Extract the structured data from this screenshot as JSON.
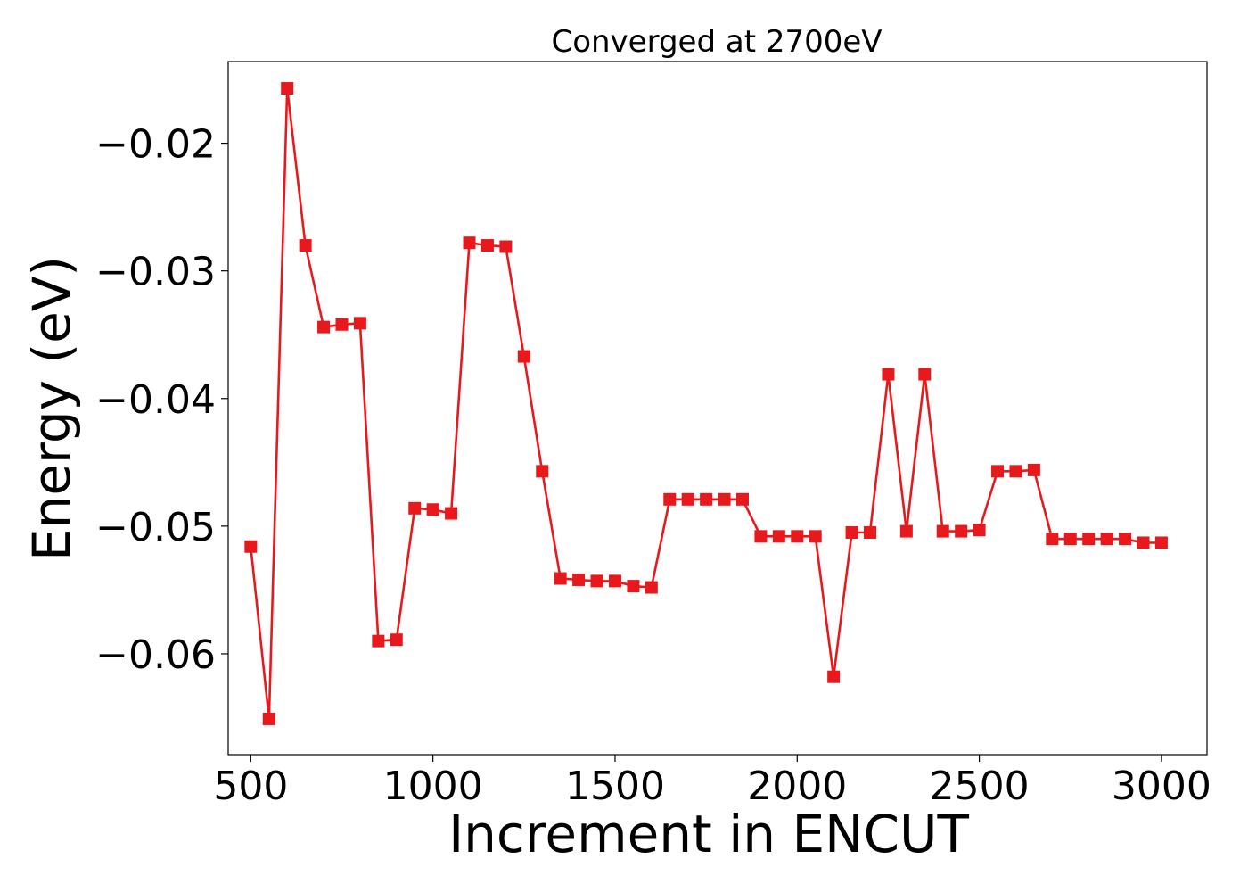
{
  "chart_data": {
    "type": "line",
    "title": "Converged at 2700eV",
    "xlabel": "Increment in ENCUT",
    "ylabel": "Energy (eV)",
    "xlim": [
      438,
      3125
    ],
    "ylim": [
      -0.0679,
      -0.0136
    ],
    "xticks": [
      500,
      1000,
      1500,
      2000,
      2500,
      3000
    ],
    "xtick_labels": [
      "500",
      "1000",
      "1500",
      "2000",
      "2500",
      "3000"
    ],
    "yticks": [
      -0.06,
      -0.05,
      -0.04,
      -0.03,
      -0.02
    ],
    "ytick_labels": [
      "−0.06",
      "−0.05",
      "−0.04",
      "−0.03",
      "−0.02"
    ],
    "grid": false,
    "legend": "none",
    "series": [
      {
        "color": "#e8191c",
        "marker": "square",
        "x": [
          500,
          550,
          600,
          650,
          700,
          750,
          800,
          850,
          900,
          950,
          1000,
          1050,
          1100,
          1150,
          1200,
          1250,
          1300,
          1350,
          1400,
          1450,
          1500,
          1550,
          1600,
          1650,
          1700,
          1750,
          1800,
          1850,
          1900,
          1950,
          2000,
          2050,
          2100,
          2150,
          2200,
          2250,
          2300,
          2350,
          2400,
          2450,
          2500,
          2550,
          2600,
          2650,
          2700,
          2750,
          2800,
          2850,
          2900,
          2950,
          3000
        ],
        "values": [
          -0.0516,
          -0.0651,
          -0.0157,
          -0.028,
          -0.0344,
          -0.0342,
          -0.0341,
          -0.059,
          -0.0589,
          -0.0486,
          -0.0487,
          -0.049,
          -0.0278,
          -0.028,
          -0.0281,
          -0.0367,
          -0.0457,
          -0.0541,
          -0.0542,
          -0.0543,
          -0.0543,
          -0.0547,
          -0.0548,
          -0.0479,
          -0.0479,
          -0.0479,
          -0.0479,
          -0.0479,
          -0.0508,
          -0.0508,
          -0.0508,
          -0.0508,
          -0.0618,
          -0.0505,
          -0.0505,
          -0.0381,
          -0.0504,
          -0.0381,
          -0.0504,
          -0.0504,
          -0.0503,
          -0.0457,
          -0.0457,
          -0.0456,
          -0.051,
          -0.051,
          -0.051,
          -0.051,
          -0.051,
          -0.0513,
          -0.0513
        ]
      }
    ]
  }
}
